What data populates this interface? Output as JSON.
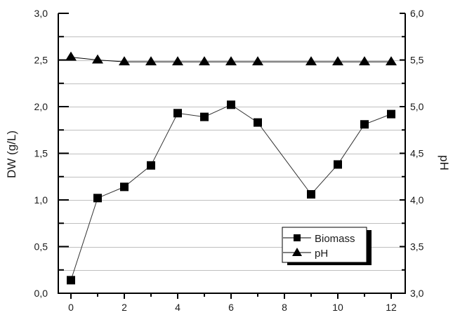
{
  "chart_data": {
    "type": "line",
    "title": "",
    "xlabel": "",
    "ylabel": "DW (g/L)",
    "y2label": "pH",
    "xlim": [
      -0.5,
      12.5
    ],
    "ylim": [
      0.0,
      3.0
    ],
    "y2lim": [
      3.0,
      6.0
    ],
    "x_ticks": [
      0,
      2,
      4,
      6,
      8,
      10,
      12
    ],
    "x_tick_labels": [
      "0",
      "2",
      "4",
      "6",
      "8",
      "10",
      "12"
    ],
    "y_ticks": [
      0.0,
      0.5,
      1.0,
      1.5,
      2.0,
      2.5,
      3.0
    ],
    "y_tick_labels": [
      "0,0",
      "0,5",
      "1,0",
      "1,5",
      "2,0",
      "2,5",
      "3,0"
    ],
    "y2_ticks": [
      3.0,
      3.5,
      4.0,
      4.5,
      5.0,
      5.5,
      6.0
    ],
    "y2_tick_labels": [
      "3,0",
      "3,5",
      "4,0",
      "4,5",
      "5,0",
      "5,5",
      "6,0"
    ],
    "grid": "horizontal",
    "legend_position": "lower right",
    "series": [
      {
        "name": "Biomass",
        "axis": "left",
        "marker": "square",
        "x": [
          0,
          1,
          2,
          3,
          4,
          5,
          6,
          7,
          9,
          10,
          11,
          12
        ],
        "values": [
          0.14,
          1.02,
          1.14,
          1.37,
          1.93,
          1.89,
          2.02,
          1.83,
          1.06,
          1.38,
          1.81,
          1.92
        ]
      },
      {
        "name": "pH",
        "axis": "right",
        "marker": "triangle",
        "x": [
          0,
          1,
          2,
          3,
          4,
          5,
          6,
          7,
          9,
          10,
          11,
          12
        ],
        "values": [
          5.53,
          5.5,
          5.48,
          5.48,
          5.48,
          5.48,
          5.48,
          5.48,
          5.48,
          5.48,
          5.48,
          5.48
        ]
      }
    ]
  },
  "legend": {
    "items": [
      {
        "label": "Biomass",
        "marker": "square"
      },
      {
        "label": "pH",
        "marker": "triangle"
      }
    ]
  },
  "colors": {
    "axis": "#000000",
    "grid": "#bfbfbf",
    "marker": "#000000",
    "line": "#333333",
    "text": "#1a1a1a"
  }
}
